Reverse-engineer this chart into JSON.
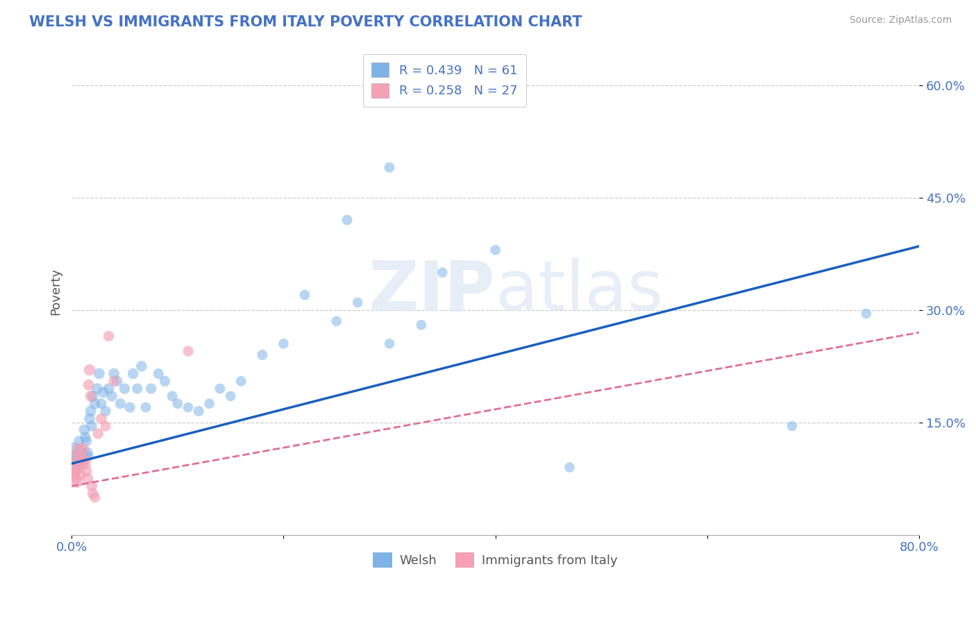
{
  "title": "WELSH VS IMMIGRANTS FROM ITALY POVERTY CORRELATION CHART",
  "source": "Source: ZipAtlas.com",
  "ylabel": "Poverty",
  "xlim": [
    0.0,
    0.8
  ],
  "ylim": [
    0.0,
    0.65
  ],
  "xticks": [
    0.0,
    0.2,
    0.4,
    0.6,
    0.8
  ],
  "xticklabels": [
    "0.0%",
    "",
    "",
    "",
    "80.0%"
  ],
  "ytick_positions": [
    0.15,
    0.3,
    0.45,
    0.6
  ],
  "ytick_labels": [
    "15.0%",
    "30.0%",
    "45.0%",
    "60.0%"
  ],
  "welsh_color": "#7EB3E8",
  "italian_color": "#F4A0B5",
  "welsh_line_color": "#1A5FBE",
  "italian_line_color": "#E07090",
  "welsh_R": 0.439,
  "welsh_N": 61,
  "italian_R": 0.258,
  "italian_N": 27,
  "welsh_line": [
    [
      0.0,
      0.095
    ],
    [
      0.8,
      0.385
    ]
  ],
  "italian_line": [
    [
      0.0,
      0.065
    ],
    [
      0.8,
      0.27
    ]
  ],
  "welsh_scatter": [
    [
      0.002,
      0.115
    ],
    [
      0.003,
      0.105
    ],
    [
      0.004,
      0.1
    ],
    [
      0.005,
      0.095
    ],
    [
      0.006,
      0.09
    ],
    [
      0.007,
      0.125
    ],
    [
      0.008,
      0.115
    ],
    [
      0.009,
      0.1
    ],
    [
      0.01,
      0.11
    ],
    [
      0.011,
      0.105
    ],
    [
      0.012,
      0.14
    ],
    [
      0.013,
      0.13
    ],
    [
      0.014,
      0.125
    ],
    [
      0.015,
      0.11
    ],
    [
      0.016,
      0.105
    ],
    [
      0.017,
      0.155
    ],
    [
      0.018,
      0.165
    ],
    [
      0.019,
      0.145
    ],
    [
      0.02,
      0.185
    ],
    [
      0.022,
      0.175
    ],
    [
      0.024,
      0.195
    ],
    [
      0.026,
      0.215
    ],
    [
      0.028,
      0.175
    ],
    [
      0.03,
      0.19
    ],
    [
      0.032,
      0.165
    ],
    [
      0.035,
      0.195
    ],
    [
      0.038,
      0.185
    ],
    [
      0.04,
      0.215
    ],
    [
      0.043,
      0.205
    ],
    [
      0.046,
      0.175
    ],
    [
      0.05,
      0.195
    ],
    [
      0.055,
      0.17
    ],
    [
      0.058,
      0.215
    ],
    [
      0.062,
      0.195
    ],
    [
      0.066,
      0.225
    ],
    [
      0.07,
      0.17
    ],
    [
      0.075,
      0.195
    ],
    [
      0.082,
      0.215
    ],
    [
      0.088,
      0.205
    ],
    [
      0.095,
      0.185
    ],
    [
      0.1,
      0.175
    ],
    [
      0.11,
      0.17
    ],
    [
      0.12,
      0.165
    ],
    [
      0.13,
      0.175
    ],
    [
      0.14,
      0.195
    ],
    [
      0.15,
      0.185
    ],
    [
      0.16,
      0.205
    ],
    [
      0.18,
      0.24
    ],
    [
      0.2,
      0.255
    ],
    [
      0.22,
      0.32
    ],
    [
      0.25,
      0.285
    ],
    [
      0.27,
      0.31
    ],
    [
      0.3,
      0.255
    ],
    [
      0.33,
      0.28
    ],
    [
      0.26,
      0.42
    ],
    [
      0.3,
      0.49
    ],
    [
      0.35,
      0.35
    ],
    [
      0.4,
      0.38
    ],
    [
      0.47,
      0.09
    ],
    [
      0.68,
      0.145
    ],
    [
      0.75,
      0.295
    ]
  ],
  "welsh_sizes": [
    180,
    130,
    130,
    120,
    110,
    120,
    130,
    120,
    110,
    120,
    130,
    125,
    120,
    115,
    110,
    130,
    130,
    120,
    130,
    130,
    130,
    130,
    120,
    130,
    120,
    130,
    120,
    130,
    125,
    120,
    125,
    120,
    125,
    120,
    125,
    115,
    120,
    120,
    120,
    115,
    115,
    110,
    115,
    110,
    115,
    110,
    115,
    115,
    110,
    115,
    110,
    110,
    110,
    110,
    115,
    115,
    110,
    110,
    110,
    110,
    110
  ],
  "italian_scatter": [
    [
      0.001,
      0.095
    ],
    [
      0.002,
      0.08
    ],
    [
      0.003,
      0.085
    ],
    [
      0.004,
      0.075
    ],
    [
      0.005,
      0.07
    ],
    [
      0.006,
      0.115
    ],
    [
      0.007,
      0.095
    ],
    [
      0.008,
      0.08
    ],
    [
      0.009,
      0.105
    ],
    [
      0.01,
      0.095
    ],
    [
      0.011,
      0.115
    ],
    [
      0.012,
      0.1
    ],
    [
      0.013,
      0.095
    ],
    [
      0.014,
      0.085
    ],
    [
      0.015,
      0.075
    ],
    [
      0.016,
      0.2
    ],
    [
      0.017,
      0.22
    ],
    [
      0.018,
      0.185
    ],
    [
      0.019,
      0.065
    ],
    [
      0.02,
      0.055
    ],
    [
      0.022,
      0.05
    ],
    [
      0.025,
      0.135
    ],
    [
      0.028,
      0.155
    ],
    [
      0.032,
      0.145
    ],
    [
      0.04,
      0.205
    ],
    [
      0.11,
      0.245
    ],
    [
      0.035,
      0.265
    ]
  ],
  "italian_sizes": [
    700,
    160,
    140,
    130,
    140,
    130,
    140,
    130,
    140,
    130,
    140,
    130,
    140,
    130,
    140,
    130,
    140,
    130,
    130,
    125,
    120,
    125,
    125,
    120,
    120,
    120,
    120
  ]
}
